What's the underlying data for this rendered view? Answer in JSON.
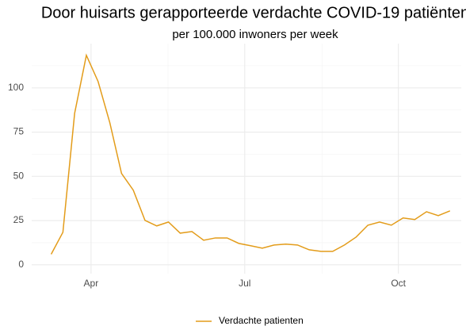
{
  "chart_data": {
    "type": "line",
    "title": "Door huisarts gerapporteerde verdachte COVID-19 patiënten",
    "subtitle": "per 100.000 inwoners per week",
    "categories": [
      null,
      null,
      null,
      null,
      null,
      null,
      null,
      null,
      null,
      null,
      null,
      null,
      null,
      null,
      null,
      null,
      null,
      null,
      null,
      null,
      null,
      null,
      null,
      null,
      null,
      null,
      null,
      null,
      null,
      null,
      null,
      null,
      null,
      null,
      null
    ],
    "series": [
      {
        "name": "Verdachte patienten",
        "color": "#e39c1a",
        "values": [
          6,
          18.4,
          85.6,
          118.4,
          103.6,
          80.3,
          51.6,
          42.2,
          25.1,
          22,
          24.2,
          17.9,
          18.8,
          13.9,
          15.2,
          15.2,
          12.1,
          10.8,
          9.4,
          11.2,
          11.7,
          11.2,
          8.5,
          7.6,
          7.6,
          11.2,
          15.7,
          22.4,
          24.2,
          22.4,
          26.5,
          25.6,
          30,
          27.8,
          30.5
        ]
      }
    ],
    "xlim": [
      -1.66,
      34.96
    ],
    "xticks": [
      {
        "value": 3.4,
        "label": "Apr"
      },
      {
        "value": 16.5,
        "label": "Jul"
      },
      {
        "value": 29.6,
        "label": "Oct"
      }
    ],
    "xminor_ticks": [
      9.96,
      23.1
    ],
    "ylim": [
      -5,
      125
    ],
    "yticks": [
      0,
      25,
      50,
      75,
      100
    ],
    "yminor_ticks": [
      12.5,
      37.5,
      62.5,
      87.5,
      112.5
    ],
    "grid": true,
    "legend": "bottom"
  }
}
